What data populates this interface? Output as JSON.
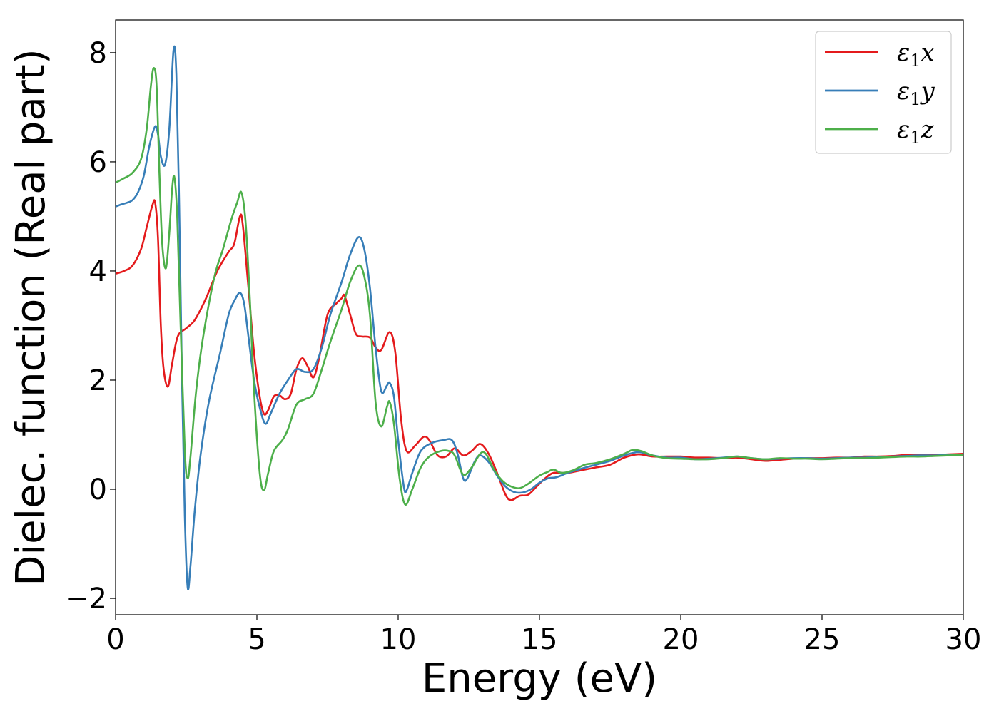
{
  "chart_data": {
    "type": "line",
    "title": "",
    "xlabel": "Energy (eV)",
    "ylabel": "Dielec. function (Real part)",
    "xlim": [
      0,
      30
    ],
    "ylim": [
      -2.3,
      8.6
    ],
    "xticks": [
      0,
      5,
      10,
      15,
      20,
      25,
      30
    ],
    "xtick_labels": [
      "0",
      "5",
      "10",
      "15",
      "20",
      "25",
      "30"
    ],
    "yticks": [
      -2,
      0,
      2,
      4,
      6,
      8
    ],
    "ytick_labels": [
      "−2",
      "0",
      "2",
      "4",
      "6",
      "8"
    ],
    "grid": false,
    "legend_position": "top-right",
    "series": [
      {
        "name": "ε₁x",
        "legend_symbol": "ε",
        "legend_sub": "1",
        "legend_suffix": "x",
        "color": "#e41a1c",
        "points": [
          [
            0,
            3.95
          ],
          [
            0.3,
            4.0
          ],
          [
            0.6,
            4.1
          ],
          [
            0.9,
            4.4
          ],
          [
            1.1,
            4.8
          ],
          [
            1.3,
            5.2
          ],
          [
            1.4,
            5.25
          ],
          [
            1.5,
            4.6
          ],
          [
            1.6,
            3.0
          ],
          [
            1.7,
            2.2
          ],
          [
            1.85,
            1.88
          ],
          [
            2.0,
            2.3
          ],
          [
            2.2,
            2.8
          ],
          [
            2.5,
            2.95
          ],
          [
            2.8,
            3.1
          ],
          [
            3.2,
            3.5
          ],
          [
            3.6,
            4.0
          ],
          [
            4.0,
            4.35
          ],
          [
            4.2,
            4.5
          ],
          [
            4.4,
            5.0
          ],
          [
            4.5,
            4.85
          ],
          [
            4.7,
            3.7
          ],
          [
            4.9,
            2.5
          ],
          [
            5.1,
            1.7
          ],
          [
            5.25,
            1.38
          ],
          [
            5.4,
            1.45
          ],
          [
            5.6,
            1.7
          ],
          [
            5.8,
            1.72
          ],
          [
            6.0,
            1.65
          ],
          [
            6.2,
            1.75
          ],
          [
            6.4,
            2.2
          ],
          [
            6.6,
            2.4
          ],
          [
            6.8,
            2.25
          ],
          [
            7.0,
            2.05
          ],
          [
            7.2,
            2.4
          ],
          [
            7.5,
            3.2
          ],
          [
            7.8,
            3.4
          ],
          [
            8.0,
            3.5
          ],
          [
            8.1,
            3.55
          ],
          [
            8.3,
            3.2
          ],
          [
            8.5,
            2.85
          ],
          [
            8.7,
            2.8
          ],
          [
            9.0,
            2.78
          ],
          [
            9.2,
            2.6
          ],
          [
            9.4,
            2.55
          ],
          [
            9.7,
            2.88
          ],
          [
            9.9,
            2.5
          ],
          [
            10.1,
            1.3
          ],
          [
            10.3,
            0.7
          ],
          [
            10.6,
            0.8
          ],
          [
            10.9,
            0.96
          ],
          [
            11.1,
            0.9
          ],
          [
            11.4,
            0.62
          ],
          [
            11.7,
            0.6
          ],
          [
            12.0,
            0.75
          ],
          [
            12.3,
            0.62
          ],
          [
            12.6,
            0.7
          ],
          [
            12.9,
            0.83
          ],
          [
            13.2,
            0.65
          ],
          [
            13.5,
            0.3
          ],
          [
            13.8,
            -0.1
          ],
          [
            14.0,
            -0.2
          ],
          [
            14.3,
            -0.12
          ],
          [
            14.6,
            -0.1
          ],
          [
            14.9,
            0.05
          ],
          [
            15.2,
            0.2
          ],
          [
            15.5,
            0.3
          ],
          [
            16.0,
            0.3
          ],
          [
            16.5,
            0.35
          ],
          [
            17.0,
            0.4
          ],
          [
            17.5,
            0.45
          ],
          [
            18.0,
            0.58
          ],
          [
            18.5,
            0.64
          ],
          [
            19.0,
            0.6
          ],
          [
            19.5,
            0.6
          ],
          [
            20.0,
            0.6
          ],
          [
            20.5,
            0.58
          ],
          [
            21.0,
            0.58
          ],
          [
            21.5,
            0.57
          ],
          [
            22.0,
            0.58
          ],
          [
            22.5,
            0.55
          ],
          [
            23.0,
            0.52
          ],
          [
            23.5,
            0.54
          ],
          [
            24.0,
            0.56
          ],
          [
            24.5,
            0.57
          ],
          [
            25.0,
            0.57
          ],
          [
            25.5,
            0.58
          ],
          [
            26.0,
            0.58
          ],
          [
            26.5,
            0.6
          ],
          [
            27.0,
            0.6
          ],
          [
            27.5,
            0.61
          ],
          [
            28.0,
            0.63
          ],
          [
            28.5,
            0.63
          ],
          [
            29.0,
            0.63
          ],
          [
            29.5,
            0.64
          ],
          [
            30.0,
            0.65
          ]
        ]
      },
      {
        "name": "ε₁y",
        "legend_symbol": "ε",
        "legend_sub": "1",
        "legend_suffix": "y",
        "color": "#377eb8",
        "points": [
          [
            0,
            5.18
          ],
          [
            0.2,
            5.22
          ],
          [
            0.4,
            5.25
          ],
          [
            0.6,
            5.3
          ],
          [
            0.8,
            5.45
          ],
          [
            1.0,
            5.75
          ],
          [
            1.2,
            6.3
          ],
          [
            1.4,
            6.65
          ],
          [
            1.5,
            6.5
          ],
          [
            1.6,
            6.1
          ],
          [
            1.75,
            5.95
          ],
          [
            1.9,
            6.6
          ],
          [
            2.05,
            8.05
          ],
          [
            2.15,
            7.6
          ],
          [
            2.25,
            5.2
          ],
          [
            2.35,
            2.0
          ],
          [
            2.45,
            -0.5
          ],
          [
            2.55,
            -1.8
          ],
          [
            2.65,
            -1.4
          ],
          [
            2.8,
            -0.4
          ],
          [
            3.0,
            0.6
          ],
          [
            3.3,
            1.6
          ],
          [
            3.7,
            2.5
          ],
          [
            4.0,
            3.2
          ],
          [
            4.2,
            3.45
          ],
          [
            4.4,
            3.6
          ],
          [
            4.55,
            3.4
          ],
          [
            4.7,
            2.8
          ],
          [
            4.9,
            2.0
          ],
          [
            5.1,
            1.5
          ],
          [
            5.3,
            1.2
          ],
          [
            5.5,
            1.4
          ],
          [
            5.8,
            1.75
          ],
          [
            6.1,
            2.0
          ],
          [
            6.4,
            2.2
          ],
          [
            6.7,
            2.15
          ],
          [
            7.0,
            2.2
          ],
          [
            7.3,
            2.6
          ],
          [
            7.6,
            3.2
          ],
          [
            8.0,
            3.8
          ],
          [
            8.3,
            4.3
          ],
          [
            8.6,
            4.62
          ],
          [
            8.8,
            4.4
          ],
          [
            9.0,
            3.7
          ],
          [
            9.2,
            2.6
          ],
          [
            9.4,
            1.8
          ],
          [
            9.6,
            1.9
          ],
          [
            9.7,
            1.95
          ],
          [
            9.85,
            1.7
          ],
          [
            10.0,
            0.9
          ],
          [
            10.2,
            0.05
          ],
          [
            10.3,
            -0.02
          ],
          [
            10.5,
            0.3
          ],
          [
            10.8,
            0.7
          ],
          [
            11.2,
            0.85
          ],
          [
            11.6,
            0.9
          ],
          [
            11.9,
            0.9
          ],
          [
            12.1,
            0.65
          ],
          [
            12.3,
            0.2
          ],
          [
            12.45,
            0.2
          ],
          [
            12.7,
            0.5
          ],
          [
            12.9,
            0.62
          ],
          [
            13.2,
            0.5
          ],
          [
            13.5,
            0.25
          ],
          [
            13.8,
            0.05
          ],
          [
            14.1,
            -0.05
          ],
          [
            14.4,
            -0.06
          ],
          [
            14.7,
            0.0
          ],
          [
            15.0,
            0.12
          ],
          [
            15.3,
            0.2
          ],
          [
            15.6,
            0.22
          ],
          [
            16.0,
            0.3
          ],
          [
            16.5,
            0.38
          ],
          [
            17.0,
            0.45
          ],
          [
            17.5,
            0.52
          ],
          [
            18.0,
            0.62
          ],
          [
            18.5,
            0.68
          ],
          [
            19.0,
            0.62
          ],
          [
            19.5,
            0.58
          ],
          [
            20.0,
            0.58
          ],
          [
            20.5,
            0.55
          ],
          [
            21.0,
            0.56
          ],
          [
            21.5,
            0.58
          ],
          [
            22.0,
            0.6
          ],
          [
            22.5,
            0.57
          ],
          [
            23.0,
            0.55
          ],
          [
            23.5,
            0.56
          ],
          [
            24.0,
            0.57
          ],
          [
            24.5,
            0.57
          ],
          [
            25.0,
            0.56
          ],
          [
            25.5,
            0.57
          ],
          [
            26.0,
            0.58
          ],
          [
            26.5,
            0.58
          ],
          [
            27.0,
            0.59
          ],
          [
            27.5,
            0.6
          ],
          [
            28.0,
            0.61
          ],
          [
            28.5,
            0.62
          ],
          [
            29.0,
            0.62
          ],
          [
            29.5,
            0.63
          ],
          [
            30.0,
            0.63
          ]
        ]
      },
      {
        "name": "ε₁z",
        "legend_symbol": "ε",
        "legend_sub": "1",
        "legend_suffix": "z",
        "color": "#4daf4a",
        "points": [
          [
            0,
            5.62
          ],
          [
            0.3,
            5.7
          ],
          [
            0.6,
            5.8
          ],
          [
            0.9,
            6.05
          ],
          [
            1.1,
            6.6
          ],
          [
            1.25,
            7.4
          ],
          [
            1.35,
            7.72
          ],
          [
            1.45,
            7.4
          ],
          [
            1.55,
            5.8
          ],
          [
            1.65,
            4.5
          ],
          [
            1.78,
            4.05
          ],
          [
            1.9,
            4.7
          ],
          [
            2.0,
            5.5
          ],
          [
            2.08,
            5.72
          ],
          [
            2.18,
            5.0
          ],
          [
            2.3,
            3.0
          ],
          [
            2.45,
            0.7
          ],
          [
            2.55,
            0.2
          ],
          [
            2.65,
            0.6
          ],
          [
            2.85,
            1.8
          ],
          [
            3.1,
            2.8
          ],
          [
            3.5,
            3.9
          ],
          [
            3.8,
            4.4
          ],
          [
            4.1,
            4.95
          ],
          [
            4.3,
            5.25
          ],
          [
            4.45,
            5.44
          ],
          [
            4.6,
            4.9
          ],
          [
            4.75,
            3.5
          ],
          [
            4.9,
            1.8
          ],
          [
            5.1,
            0.3
          ],
          [
            5.25,
            -0.02
          ],
          [
            5.4,
            0.3
          ],
          [
            5.6,
            0.7
          ],
          [
            5.9,
            0.9
          ],
          [
            6.1,
            1.1
          ],
          [
            6.4,
            1.55
          ],
          [
            6.7,
            1.65
          ],
          [
            7.0,
            1.75
          ],
          [
            7.3,
            2.2
          ],
          [
            7.6,
            2.7
          ],
          [
            8.0,
            3.3
          ],
          [
            8.3,
            3.8
          ],
          [
            8.6,
            4.1
          ],
          [
            8.8,
            3.9
          ],
          [
            9.0,
            3.2
          ],
          [
            9.2,
            1.6
          ],
          [
            9.4,
            1.15
          ],
          [
            9.6,
            1.5
          ],
          [
            9.7,
            1.6
          ],
          [
            9.85,
            1.2
          ],
          [
            10.05,
            0.2
          ],
          [
            10.25,
            -0.28
          ],
          [
            10.5,
            0.0
          ],
          [
            10.8,
            0.4
          ],
          [
            11.1,
            0.6
          ],
          [
            11.5,
            0.7
          ],
          [
            11.8,
            0.7
          ],
          [
            12.0,
            0.62
          ],
          [
            12.3,
            0.27
          ],
          [
            12.6,
            0.4
          ],
          [
            12.9,
            0.65
          ],
          [
            13.1,
            0.65
          ],
          [
            13.4,
            0.35
          ],
          [
            13.7,
            0.15
          ],
          [
            14.0,
            0.05
          ],
          [
            14.3,
            0.02
          ],
          [
            14.6,
            0.1
          ],
          [
            15.0,
            0.25
          ],
          [
            15.3,
            0.32
          ],
          [
            15.5,
            0.36
          ],
          [
            15.8,
            0.3
          ],
          [
            16.2,
            0.35
          ],
          [
            16.6,
            0.45
          ],
          [
            17.0,
            0.48
          ],
          [
            17.5,
            0.55
          ],
          [
            18.0,
            0.65
          ],
          [
            18.3,
            0.72
          ],
          [
            18.6,
            0.7
          ],
          [
            19.0,
            0.62
          ],
          [
            19.5,
            0.57
          ],
          [
            20.0,
            0.56
          ],
          [
            20.5,
            0.55
          ],
          [
            21.0,
            0.55
          ],
          [
            21.5,
            0.57
          ],
          [
            22.0,
            0.6
          ],
          [
            22.5,
            0.57
          ],
          [
            23.0,
            0.55
          ],
          [
            23.5,
            0.57
          ],
          [
            24.0,
            0.56
          ],
          [
            24.5,
            0.56
          ],
          [
            25.0,
            0.55
          ],
          [
            25.5,
            0.56
          ],
          [
            26.0,
            0.57
          ],
          [
            26.5,
            0.57
          ],
          [
            27.0,
            0.58
          ],
          [
            27.5,
            0.59
          ],
          [
            28.0,
            0.6
          ],
          [
            28.5,
            0.6
          ],
          [
            29.0,
            0.61
          ],
          [
            29.5,
            0.62
          ],
          [
            30.0,
            0.63
          ]
        ]
      }
    ]
  }
}
